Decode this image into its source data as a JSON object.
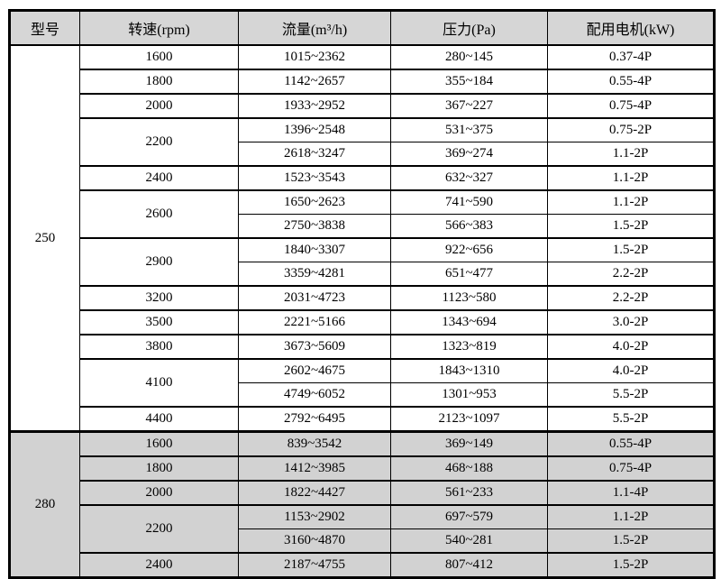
{
  "table": {
    "header_bg": "#d6d6d6",
    "section_280_bg": "#d2d2d2",
    "border_color": "#000000",
    "headers": {
      "model": "型号",
      "speed": "转速(rpm)",
      "flow": "流量(m³/h)",
      "pressure": "压力(Pa)",
      "motor": "配用电机(kW)"
    },
    "sections": [
      {
        "model": "250",
        "groups": [
          {
            "speed": "1600",
            "rows": [
              {
                "flow": "1015~2362",
                "pressure": "280~145",
                "motor": "0.37-4P"
              }
            ]
          },
          {
            "speed": "1800",
            "rows": [
              {
                "flow": "1142~2657",
                "pressure": "355~184",
                "motor": "0.55-4P"
              }
            ]
          },
          {
            "speed": "2000",
            "rows": [
              {
                "flow": "1933~2952",
                "pressure": "367~227",
                "motor": "0.75-4P"
              }
            ]
          },
          {
            "speed": "2200",
            "rows": [
              {
                "flow": "1396~2548",
                "pressure": "531~375",
                "motor": "0.75-2P"
              },
              {
                "flow": "2618~3247",
                "pressure": "369~274",
                "motor": "1.1-2P"
              }
            ]
          },
          {
            "speed": "2400",
            "rows": [
              {
                "flow": "1523~3543",
                "pressure": "632~327",
                "motor": "1.1-2P"
              }
            ]
          },
          {
            "speed": "2600",
            "rows": [
              {
                "flow": "1650~2623",
                "pressure": "741~590",
                "motor": "1.1-2P"
              },
              {
                "flow": "2750~3838",
                "pressure": "566~383",
                "motor": "1.5-2P"
              }
            ]
          },
          {
            "speed": "2900",
            "rows": [
              {
                "flow": "1840~3307",
                "pressure": "922~656",
                "motor": "1.5-2P"
              },
              {
                "flow": "3359~4281",
                "pressure": "651~477",
                "motor": "2.2-2P"
              }
            ]
          },
          {
            "speed": "3200",
            "rows": [
              {
                "flow": "2031~4723",
                "pressure": "1123~580",
                "motor": "2.2-2P"
              }
            ]
          },
          {
            "speed": "3500",
            "rows": [
              {
                "flow": "2221~5166",
                "pressure": "1343~694",
                "motor": "3.0-2P"
              }
            ]
          },
          {
            "speed": "3800",
            "rows": [
              {
                "flow": "3673~5609",
                "pressure": "1323~819",
                "motor": "4.0-2P"
              }
            ]
          },
          {
            "speed": "4100",
            "rows": [
              {
                "flow": "2602~4675",
                "pressure": "1843~1310",
                "motor": "4.0-2P"
              },
              {
                "flow": "4749~6052",
                "pressure": "1301~953",
                "motor": "5.5-2P"
              }
            ]
          },
          {
            "speed": "4400",
            "rows": [
              {
                "flow": "2792~6495",
                "pressure": "2123~1097",
                "motor": "5.5-2P"
              }
            ]
          }
        ]
      },
      {
        "model": "280",
        "groups": [
          {
            "speed": "1600",
            "rows": [
              {
                "flow": "839~3542",
                "pressure": "369~149",
                "motor": "0.55-4P"
              }
            ]
          },
          {
            "speed": "1800",
            "rows": [
              {
                "flow": "1412~3985",
                "pressure": "468~188",
                "motor": "0.75-4P"
              }
            ]
          },
          {
            "speed": "2000",
            "rows": [
              {
                "flow": "1822~4427",
                "pressure": "561~233",
                "motor": "1.1-4P"
              }
            ]
          },
          {
            "speed": "2200",
            "rows": [
              {
                "flow": "1153~2902",
                "pressure": "697~579",
                "motor": "1.1-2P"
              },
              {
                "flow": "3160~4870",
                "pressure": "540~281",
                "motor": "1.5-2P"
              }
            ]
          },
          {
            "speed": "2400",
            "rows": [
              {
                "flow": "2187~4755",
                "pressure": "807~412",
                "motor": "1.5-2P"
              }
            ]
          }
        ]
      }
    ]
  }
}
